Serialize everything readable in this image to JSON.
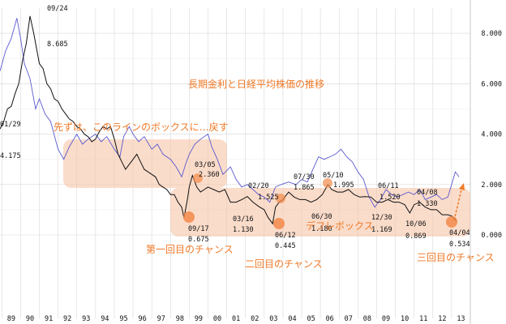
{
  "chart_data": {
    "type": "line",
    "title": "長期金利と日経平均株価の推移",
    "x_tick_labels": [
      "89",
      "90",
      "91",
      "92",
      "93",
      "94",
      "95",
      "96",
      "97",
      "98",
      "99",
      "00",
      "01",
      "02",
      "03",
      "04",
      "05",
      "06",
      "07",
      "08",
      "09",
      "10",
      "11",
      "12",
      "13"
    ],
    "y_tick_labels": [
      "8.000",
      "6.000",
      "4.000",
      "2.000",
      "0.000"
    ],
    "ylim": [
      0,
      9
    ],
    "xlim": [
      1988.9,
      2014.0
    ],
    "series": [
      {
        "name": "長期金利",
        "color": "#111111",
        "x": [
          1988.9,
          1989.1,
          1989.3,
          1989.5,
          1989.7,
          1989.9,
          1990.1,
          1990.3,
          1990.5,
          1990.7,
          1990.8,
          1991.0,
          1991.2,
          1991.4,
          1991.6,
          1991.8,
          1992.0,
          1992.2,
          1992.4,
          1992.6,
          1992.8,
          1993.0,
          1993.2,
          1993.4,
          1993.6,
          1993.8,
          1994.0,
          1994.2,
          1994.4,
          1994.6,
          1994.8,
          1995.0,
          1995.2,
          1995.4,
          1995.6,
          1995.8,
          1996.0,
          1996.2,
          1996.4,
          1996.6,
          1996.8,
          1997.0,
          1997.2,
          1997.4,
          1997.6,
          1997.8,
          1998.0,
          1998.2,
          1998.4,
          1998.6,
          1998.72,
          1998.9,
          1999.0,
          1999.17,
          1999.4,
          1999.6,
          1999.8,
          2000.0,
          2000.3,
          2000.6,
          2000.9,
          2001.2,
          2001.5,
          2001.8,
          2002.1,
          2002.4,
          2002.7,
          2003.0,
          2003.2,
          2003.45,
          2003.6,
          2003.8,
          2004.0,
          2004.3,
          2004.6,
          2004.9,
          2005.2,
          2005.5,
          2005.8,
          2006.1,
          2006.4,
          2006.6,
          2006.9,
          2007.2,
          2007.5,
          2007.8,
          2008.1,
          2008.4,
          2008.7,
          2009.0,
          2009.3,
          2009.6,
          2009.9,
          2010.2,
          2010.5,
          2010.77,
          2011.0,
          2011.3,
          2011.6,
          2011.9,
          2012.2,
          2012.5,
          2012.8,
          2013.0,
          2013.2,
          2013.26
        ],
        "values": [
          4.2,
          4.5,
          5.0,
          5.1,
          5.6,
          6.0,
          6.9,
          7.6,
          8.685,
          8.0,
          7.6,
          6.8,
          6.6,
          6.0,
          5.8,
          5.4,
          5.3,
          5.0,
          4.8,
          4.6,
          4.5,
          4.3,
          4.2,
          4.0,
          3.9,
          3.7,
          3.8,
          4.1,
          4.3,
          4.2,
          4.3,
          3.8,
          3.2,
          2.9,
          2.6,
          2.8,
          3.0,
          3.2,
          2.9,
          2.6,
          2.5,
          2.4,
          2.3,
          2.0,
          1.9,
          1.8,
          1.6,
          1.6,
          1.3,
          1.1,
          0.675,
          1.4,
          1.9,
          2.36,
          1.9,
          1.7,
          1.8,
          1.9,
          1.8,
          1.7,
          1.8,
          1.3,
          1.3,
          1.4,
          1.525,
          1.3,
          1.13,
          1.0,
          0.7,
          0.445,
          1.1,
          1.3,
          1.4,
          1.7,
          1.5,
          1.4,
          1.4,
          1.3,
          1.4,
          1.6,
          1.995,
          1.8,
          1.7,
          1.7,
          1.8,
          1.6,
          1.5,
          1.52,
          1.5,
          1.3,
          1.3,
          1.4,
          1.3,
          1.3,
          1.2,
          0.869,
          1.2,
          1.3,
          1.1,
          1.0,
          1.0,
          0.8,
          0.8,
          0.75,
          0.65,
          0.534
        ]
      },
      {
        "name": "日経平均株価",
        "color": "#5a5ad0",
        "x": [
          1988.9,
          1989.2,
          1989.5,
          1989.8,
          1990.0,
          1990.2,
          1990.5,
          1990.8,
          1991.0,
          1991.3,
          1991.6,
          1992.0,
          1992.3,
          1992.6,
          1993.0,
          1993.3,
          1993.6,
          1994.0,
          1994.3,
          1994.6,
          1995.0,
          1995.3,
          1995.5,
          1995.8,
          1996.0,
          1996.3,
          1996.6,
          1997.0,
          1997.3,
          1997.6,
          1998.0,
          1998.3,
          1998.6,
          1998.8,
          1999.0,
          1999.3,
          1999.6,
          2000.0,
          2000.2,
          2000.5,
          2000.8,
          2001.2,
          2001.5,
          2001.8,
          2002.1,
          2002.4,
          2002.7,
          2003.0,
          2003.3,
          2003.6,
          2003.9,
          2004.3,
          2004.7,
          2005.0,
          2005.3,
          2005.6,
          2005.9,
          2006.2,
          2006.5,
          2006.8,
          2007.1,
          2007.4,
          2007.7,
          2008.0,
          2008.3,
          2008.6,
          2008.9,
          2009.2,
          2009.5,
          2009.8,
          2010.1,
          2010.4,
          2010.7,
          2011.0,
          2011.3,
          2011.6,
          2011.9,
          2012.2,
          2012.5,
          2012.8,
          2013.0,
          2013.2,
          2013.4
        ],
        "values": [
          6.5,
          7.3,
          7.8,
          8.6,
          7.8,
          6.8,
          6.2,
          5.0,
          5.4,
          4.8,
          4.5,
          3.4,
          3.0,
          3.5,
          4.0,
          3.6,
          3.8,
          4.0,
          3.7,
          3.9,
          3.4,
          3.1,
          3.9,
          4.3,
          4.0,
          3.7,
          3.9,
          3.4,
          3.6,
          3.2,
          3.0,
          2.7,
          2.3,
          2.8,
          3.2,
          3.6,
          3.8,
          4.0,
          3.5,
          3.0,
          2.4,
          2.7,
          2.2,
          1.9,
          2.0,
          1.8,
          1.6,
          1.5,
          1.3,
          1.9,
          2.0,
          2.1,
          2.0,
          2.2,
          2.1,
          2.6,
          3.1,
          3.0,
          3.1,
          3.2,
          3.4,
          3.1,
          2.9,
          2.5,
          2.2,
          1.5,
          1.1,
          1.4,
          1.8,
          1.6,
          1.5,
          1.6,
          1.7,
          1.6,
          1.8,
          1.4,
          1.5,
          1.6,
          1.4,
          1.5,
          2.0,
          2.5,
          2.3
        ]
      }
    ],
    "point_labels": [
      {
        "date": "09/24",
        "value": "8.685"
      },
      {
        "date": "01/29",
        "value": "4.175"
      },
      {
        "date": "03/05",
        "value": "2.360"
      },
      {
        "date": "09/17",
        "value": "0.675"
      },
      {
        "date": "02/20",
        "value": "1.525"
      },
      {
        "date": "03/16",
        "value": "1.130"
      },
      {
        "date": "06/12",
        "value": "0.445"
      },
      {
        "date": "07/30",
        "value": "1.865"
      },
      {
        "date": "05/10",
        "value": "1.995"
      },
      {
        "date": "06/30",
        "value": "1.180"
      },
      {
        "date": "06/11",
        "value": "1.520"
      },
      {
        "date": "12/30",
        "value": "1.169"
      },
      {
        "date": "04/08",
        "value": "1.330"
      },
      {
        "date": "10/06",
        "value": "0.869"
      },
      {
        "date": "04/04",
        "value": "0.534"
      }
    ],
    "annotations": [
      {
        "text": "先ずは、このラインのボックスに…戻す"
      },
      {
        "text": "デフレボックス"
      },
      {
        "text": "第一回目のチャンス"
      },
      {
        "text": "二回目のチャンス"
      },
      {
        "text": "三回目のチャンス"
      }
    ],
    "grid": true
  }
}
